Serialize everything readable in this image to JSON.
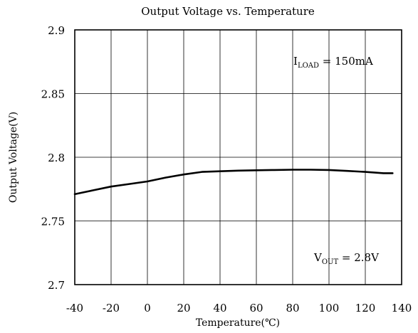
{
  "chart_data": {
    "type": "line",
    "title": "Output Voltage vs. Temperature",
    "xlabel": "Temperature(℃)",
    "ylabel": "Output Voltage(V)",
    "xlim": [
      -40,
      140
    ],
    "ylim": [
      2.7,
      2.9
    ],
    "xticks": [
      "-40",
      "-20",
      "0",
      "20",
      "40",
      "60",
      "80",
      "100",
      "120",
      "140"
    ],
    "xtick_values": [
      -40,
      -20,
      0,
      20,
      40,
      60,
      80,
      100,
      120,
      140
    ],
    "yticks": [
      "2.7",
      "2.75",
      "2.8",
      "2.85",
      "2.9"
    ],
    "ytick_values": [
      2.7,
      2.75,
      2.8,
      2.85,
      2.9
    ],
    "grid": true,
    "series": [
      {
        "x": [
          -40,
          -30,
          -20,
          -10,
          0,
          10,
          20,
          30,
          40,
          50,
          60,
          70,
          80,
          90,
          100,
          110,
          120,
          130,
          135
        ],
        "y": [
          2.771,
          2.774,
          2.777,
          2.779,
          2.781,
          2.784,
          2.7865,
          2.7885,
          2.789,
          2.7895,
          2.7898,
          2.79,
          2.7902,
          2.7902,
          2.79,
          2.7893,
          2.7885,
          2.7875,
          2.7875
        ]
      }
    ],
    "annotations": [
      {
        "main": "I",
        "sub": "LOAD",
        "rest": " = 150mA"
      },
      {
        "main": "V",
        "sub": "OUT",
        "rest": " = 2.8V"
      }
    ]
  }
}
